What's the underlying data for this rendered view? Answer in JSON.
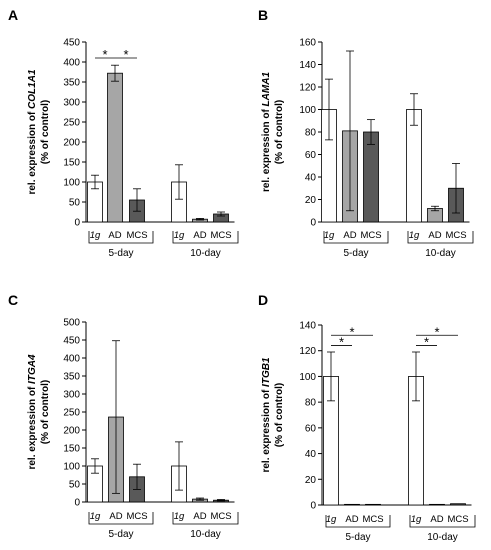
{
  "chart_data": [
    {
      "type": "bar",
      "panel": "A",
      "ylabel_line1_prefix": "rel. expression of ",
      "ylabel_line1_gene": "COL1A1",
      "ylabel_line2": "(% of control)",
      "ylim": [
        0,
        450
      ],
      "yticks": [
        0,
        50,
        100,
        150,
        200,
        250,
        300,
        350,
        400,
        450
      ],
      "groups": [
        "5-day",
        "10-day"
      ],
      "categories": [
        "1g",
        "AD",
        "MCS"
      ],
      "colors": [
        "#ffffff",
        "#a6a6a6",
        "#595959"
      ],
      "values": [
        [
          100,
          372,
          55
        ],
        [
          100,
          7,
          20
        ]
      ],
      "errors": [
        [
          17,
          20,
          28
        ],
        [
          43,
          2,
          5
        ]
      ],
      "significance": [
        {
          "group": 0,
          "from": 0,
          "to": 1,
          "label": "*",
          "level": 0
        },
        {
          "group": 0,
          "from": 1,
          "to": 2,
          "label": "*",
          "level": 0
        }
      ]
    },
    {
      "type": "bar",
      "panel": "B",
      "ylabel_line1_prefix": "rel. expression of ",
      "ylabel_line1_gene": "LAMA1",
      "ylabel_line2": "(% of control)",
      "ylim": [
        0,
        160
      ],
      "yticks": [
        0,
        20,
        40,
        60,
        80,
        100,
        120,
        140,
        160
      ],
      "groups": [
        "5-day",
        "10-day"
      ],
      "categories": [
        "1g",
        "AD",
        "MCS"
      ],
      "colors": [
        "#ffffff",
        "#a6a6a6",
        "#595959"
      ],
      "values": [
        [
          100,
          81,
          80
        ],
        [
          100,
          12,
          30
        ]
      ],
      "errors": [
        [
          27,
          71,
          11
        ],
        [
          14,
          2,
          22
        ]
      ],
      "significance": []
    },
    {
      "type": "bar",
      "panel": "C",
      "ylabel_line1_prefix": "rel. expression of ",
      "ylabel_line1_gene": "ITGA4",
      "ylabel_line2": "(% of control)",
      "ylim": [
        0,
        500
      ],
      "yticks": [
        0,
        50,
        100,
        150,
        200,
        250,
        300,
        350,
        400,
        450,
        500
      ],
      "groups": [
        "5-day",
        "10-day"
      ],
      "categories": [
        "1g",
        "AD",
        "MCS"
      ],
      "colors": [
        "#ffffff",
        "#a6a6a6",
        "#595959"
      ],
      "values": [
        [
          100,
          236,
          70
        ],
        [
          100,
          8,
          5
        ]
      ],
      "errors": [
        [
          20,
          212,
          35
        ],
        [
          67,
          3,
          2
        ]
      ],
      "significance": []
    },
    {
      "type": "bar",
      "panel": "D",
      "ylabel_line1_prefix": "rel. expression of ",
      "ylabel_line1_gene": "ITGB1",
      "ylabel_line2": "(% of control)",
      "ylim": [
        0,
        140
      ],
      "yticks": [
        0,
        20,
        40,
        60,
        80,
        100,
        120,
        140
      ],
      "groups": [
        "5-day",
        "10-day"
      ],
      "categories": [
        "1g",
        "AD",
        "MCS"
      ],
      "colors": [
        "#ffffff",
        "#a6a6a6",
        "#595959"
      ],
      "values": [
        [
          100,
          0.5,
          0.5
        ],
        [
          100,
          0.5,
          1
        ]
      ],
      "errors": [
        [
          19,
          0,
          0
        ],
        [
          19,
          0,
          0
        ]
      ],
      "significance": [
        {
          "group": 0,
          "from": 0,
          "to": 1,
          "label": "*",
          "level": 0
        },
        {
          "group": 0,
          "from": 0,
          "to": 2,
          "label": "*",
          "level": 1
        },
        {
          "group": 1,
          "from": 0,
          "to": 1,
          "label": "*",
          "level": 0
        },
        {
          "group": 1,
          "from": 0,
          "to": 2,
          "label": "*",
          "level": 1
        }
      ]
    }
  ]
}
